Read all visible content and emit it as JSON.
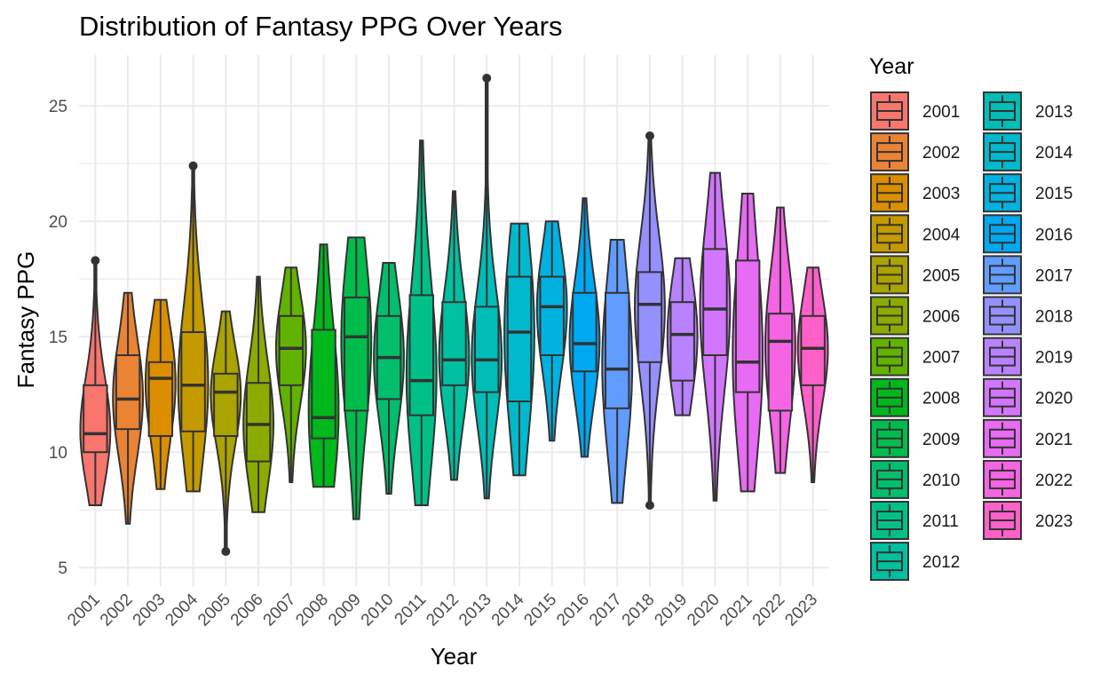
{
  "chart_data": {
    "type": "violin-boxplot",
    "title": "Distribution of Fantasy PPG Over Years",
    "xlabel": "Year",
    "ylabel": "Fantasy PPG",
    "ylim": [
      4.2,
      27.2
    ],
    "yticks": [
      5,
      10,
      15,
      20,
      25
    ],
    "grid": true,
    "legend_title": "Year",
    "legend_position": "right",
    "series": [
      {
        "year": "2001",
        "color": "#F8766D",
        "min": 7.7,
        "q1": 10.0,
        "median": 10.8,
        "q3": 12.9,
        "max": 18.3,
        "outliers": [
          18.3
        ]
      },
      {
        "year": "2002",
        "color": "#EB8335",
        "min": 6.9,
        "q1": 11.0,
        "median": 12.3,
        "q3": 14.2,
        "max": 16.9,
        "outliers": []
      },
      {
        "year": "2003",
        "color": "#DA8E00",
        "min": 8.4,
        "q1": 10.7,
        "median": 13.2,
        "q3": 13.9,
        "max": 16.6,
        "outliers": []
      },
      {
        "year": "2004",
        "color": "#C49A00",
        "min": 8.3,
        "q1": 10.9,
        "median": 12.9,
        "q3": 15.2,
        "max": 22.4,
        "outliers": [
          22.4
        ]
      },
      {
        "year": "2005",
        "color": "#AAA300",
        "min": 5.7,
        "q1": 10.7,
        "median": 12.6,
        "q3": 13.4,
        "max": 16.1,
        "outliers": [
          5.7
        ]
      },
      {
        "year": "2006",
        "color": "#8BAB00",
        "min": 7.4,
        "q1": 9.6,
        "median": 11.2,
        "q3": 13.0,
        "max": 17.6,
        "outliers": []
      },
      {
        "year": "2007",
        "color": "#62B200",
        "min": 8.7,
        "q1": 12.9,
        "median": 14.5,
        "q3": 15.9,
        "max": 18.0,
        "outliers": []
      },
      {
        "year": "2008",
        "color": "#00B81B",
        "min": 8.5,
        "q1": 10.6,
        "median": 11.5,
        "q3": 15.3,
        "max": 19.0,
        "outliers": []
      },
      {
        "year": "2009",
        "color": "#00BC4C",
        "min": 7.1,
        "q1": 11.8,
        "median": 15.0,
        "q3": 16.7,
        "max": 19.3,
        "outliers": []
      },
      {
        "year": "2010",
        "color": "#00BE6C",
        "min": 8.2,
        "q1": 12.3,
        "median": 14.1,
        "q3": 15.9,
        "max": 18.2,
        "outliers": []
      },
      {
        "year": "2011",
        "color": "#00C087",
        "min": 7.7,
        "q1": 11.6,
        "median": 13.1,
        "q3": 16.8,
        "max": 23.5,
        "outliers": []
      },
      {
        "year": "2012",
        "color": "#00C0A0",
        "min": 8.8,
        "q1": 12.9,
        "median": 14.0,
        "q3": 16.5,
        "max": 21.3,
        "outliers": []
      },
      {
        "year": "2013",
        "color": "#00BDB7",
        "min": 8.0,
        "q1": 12.6,
        "median": 14.0,
        "q3": 16.3,
        "max": 26.2,
        "outliers": [
          26.2
        ]
      },
      {
        "year": "2014",
        "color": "#00B9CC",
        "min": 9.0,
        "q1": 12.2,
        "median": 15.2,
        "q3": 17.6,
        "max": 19.9,
        "outliers": []
      },
      {
        "year": "2015",
        "color": "#00B2E0",
        "min": 10.5,
        "q1": 14.2,
        "median": 16.3,
        "q3": 17.6,
        "max": 20.0,
        "outliers": []
      },
      {
        "year": "2016",
        "color": "#00A8F1",
        "min": 9.8,
        "q1": 13.5,
        "median": 14.7,
        "q3": 16.9,
        "max": 21.0,
        "outliers": []
      },
      {
        "year": "2017",
        "color": "#619CFF",
        "min": 7.8,
        "q1": 11.9,
        "median": 13.6,
        "q3": 16.9,
        "max": 19.2,
        "outliers": []
      },
      {
        "year": "2018",
        "color": "#9590FF",
        "min": 7.7,
        "q1": 13.9,
        "median": 16.4,
        "q3": 17.8,
        "max": 23.7,
        "outliers": [
          23.7,
          7.7
        ]
      },
      {
        "year": "2019",
        "color": "#B983FF",
        "min": 11.6,
        "q1": 13.1,
        "median": 15.1,
        "q3": 16.5,
        "max": 18.4,
        "outliers": []
      },
      {
        "year": "2020",
        "color": "#D376FF",
        "min": 7.9,
        "q1": 14.2,
        "median": 16.2,
        "q3": 18.8,
        "max": 22.1,
        "outliers": []
      },
      {
        "year": "2021",
        "color": "#E76BF3",
        "min": 8.3,
        "q1": 12.6,
        "median": 13.9,
        "q3": 18.3,
        "max": 21.2,
        "outliers": []
      },
      {
        "year": "2022",
        "color": "#F564E3",
        "min": 9.1,
        "q1": 11.8,
        "median": 14.8,
        "q3": 16.0,
        "max": 20.6,
        "outliers": []
      },
      {
        "year": "2023",
        "color": "#FF61C9",
        "min": 8.7,
        "q1": 12.9,
        "median": 14.5,
        "q3": 15.9,
        "max": 18.0,
        "outliers": []
      }
    ]
  }
}
